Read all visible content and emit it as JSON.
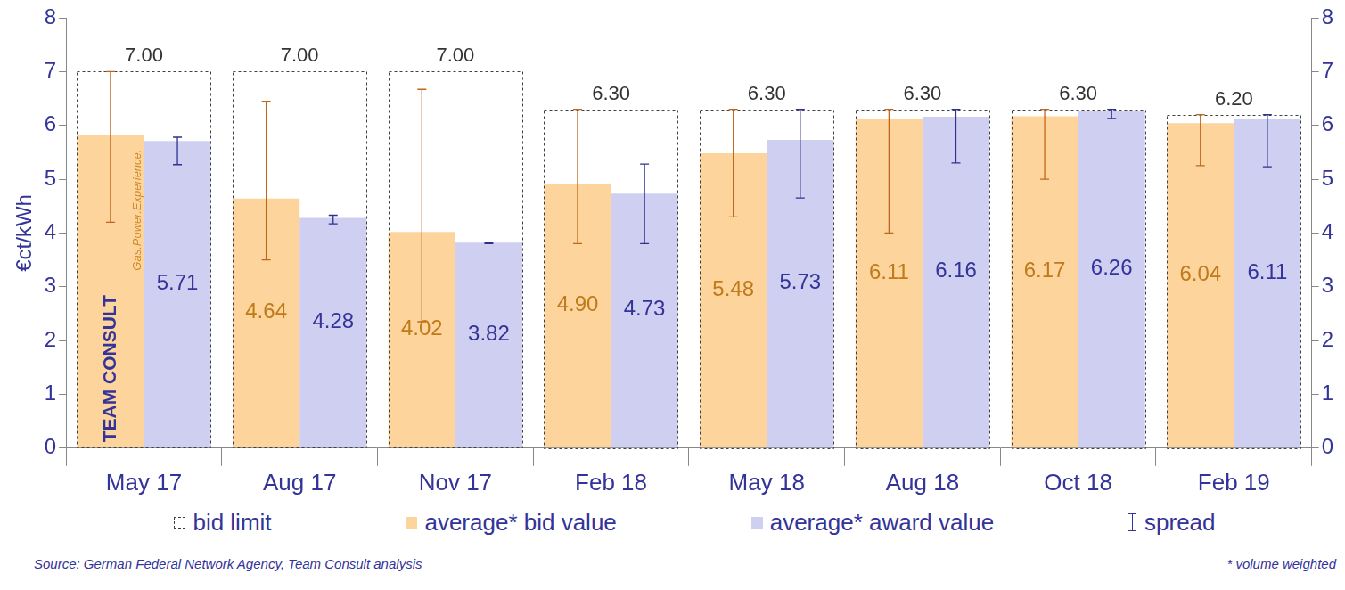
{
  "chart_data": {
    "type": "bar",
    "categories": [
      "May 17",
      "Aug 17",
      "Nov 17",
      "Feb 18",
      "May 18",
      "Aug 18",
      "Oct 18",
      "Feb 19"
    ],
    "y_label": "€ct/kWh",
    "ylim": [
      0,
      8
    ],
    "yticks": [
      0,
      1,
      2,
      3,
      4,
      5,
      6,
      7,
      8
    ],
    "y2lim": [
      0,
      8
    ],
    "y2ticks": [
      0,
      1,
      2,
      3,
      4,
      5,
      6,
      7,
      8
    ],
    "grid": false,
    "data_labels": true,
    "legend": "bottom",
    "series": [
      {
        "name": "bid limit",
        "type": "bar",
        "line_style": "dashed",
        "color": "#404040",
        "values": [
          7.0,
          7.0,
          7.0,
          6.3,
          6.3,
          6.3,
          6.3,
          6.2
        ],
        "value_labels": [
          "7.00",
          "7.00",
          "7.00",
          "6.30",
          "6.30",
          "6.30",
          "6.30",
          "6.20"
        ]
      },
      {
        "name": "average* bid value",
        "type": "bar",
        "color": "#fdd59c",
        "values": [
          5.82,
          4.64,
          4.02,
          4.9,
          5.48,
          6.11,
          6.17,
          6.04
        ],
        "value_labels": [
          null,
          "4.64",
          "4.02",
          "4.90",
          "5.48",
          "6.11",
          "6.17",
          "6.04"
        ],
        "spread_min": [
          4.2,
          3.5,
          2.35,
          3.8,
          4.3,
          4.0,
          5.0,
          5.25
        ],
        "spread_max": [
          7.0,
          6.45,
          6.67,
          6.3,
          6.3,
          6.3,
          6.3,
          6.2
        ]
      },
      {
        "name": "average* award value",
        "type": "bar",
        "color": "#cfcff1",
        "values": [
          5.71,
          4.28,
          3.82,
          4.73,
          5.73,
          6.16,
          6.26,
          6.11
        ],
        "value_labels": [
          "5.71",
          "4.28",
          "3.82",
          "4.73",
          "5.73",
          "6.16",
          "6.26",
          "6.11"
        ],
        "spread_min": [
          5.27,
          4.17,
          3.8,
          3.8,
          4.65,
          5.3,
          6.13,
          5.23
        ],
        "spread_max": [
          5.78,
          4.33,
          3.82,
          5.28,
          6.3,
          6.3,
          6.3,
          6.2
        ]
      }
    ],
    "spread_label": "spread",
    "annotations": [
      "TEAM CONSULT",
      "Gas.Power.Experience."
    ],
    "source": "Source: German Federal Network Agency, Team Consult analysis",
    "footnote": "* volume weighted"
  }
}
